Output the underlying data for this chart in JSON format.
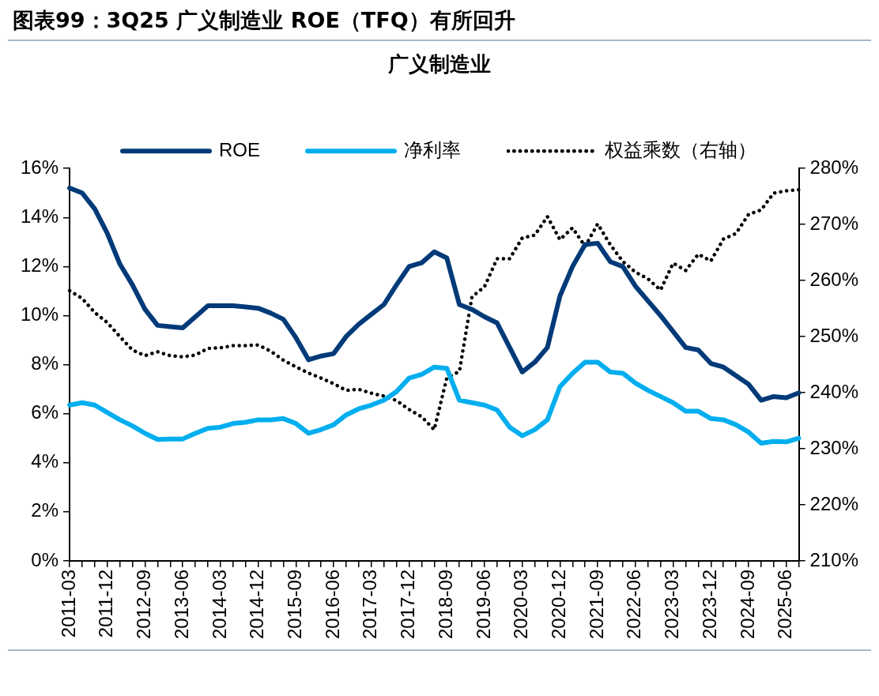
{
  "chart_data": {
    "type": "line",
    "title": "图表99：3Q25 广义制造业 ROE（TFQ）有所回升",
    "subtitle": "广义制造业",
    "categories": [
      "2011-03",
      null,
      null,
      "2011-12",
      null,
      null,
      "2012-09",
      null,
      null,
      "2013-06",
      null,
      null,
      "2014-03",
      null,
      null,
      "2014-12",
      null,
      null,
      "2015-09",
      null,
      null,
      "2016-06",
      null,
      null,
      "2017-03",
      null,
      null,
      "2017-12",
      null,
      null,
      "2018-09",
      null,
      null,
      "2019-06",
      null,
      null,
      "2020-03",
      null,
      null,
      "2020-12",
      null,
      null,
      "2021-09",
      null,
      null,
      "2022-06",
      null,
      null,
      "2023-03",
      null,
      null,
      "2023-12",
      null,
      null,
      "2024-09",
      null,
      null,
      "2025-06",
      null
    ],
    "series": [
      {
        "name": "ROE",
        "color": "#003a78",
        "line_style": "solid",
        "values": [
          15.2,
          15.0,
          14.35,
          13.35,
          12.1,
          11.25,
          10.25,
          9.6,
          9.55,
          9.5,
          9.95,
          10.4,
          10.4,
          10.4,
          10.35,
          10.3,
          10.1,
          9.85,
          9.1,
          8.2,
          8.35,
          8.45,
          9.15,
          9.65,
          10.05,
          10.45,
          11.25,
          12.0,
          12.15,
          12.6,
          12.35,
          10.45,
          10.25,
          9.95,
          9.7,
          8.7,
          7.7,
          8.1,
          8.7,
          10.8,
          12.0,
          12.9,
          12.95,
          12.2,
          12.0,
          11.2,
          10.6,
          10.0,
          9.35,
          8.7,
          8.6,
          8.05,
          7.9,
          7.55,
          7.2,
          6.55,
          6.7,
          6.65,
          6.85
        ]
      },
      {
        "name": "净利率",
        "color": "#00aeef",
        "line_style": "solid",
        "values": [
          6.35,
          6.45,
          6.35,
          6.05,
          5.75,
          5.5,
          5.2,
          4.95,
          4.97,
          4.97,
          5.2,
          5.4,
          5.45,
          5.6,
          5.65,
          5.75,
          5.75,
          5.8,
          5.6,
          5.2,
          5.35,
          5.55,
          5.95,
          6.2,
          6.35,
          6.55,
          6.9,
          7.45,
          7.6,
          7.9,
          7.85,
          6.55,
          6.45,
          6.35,
          6.15,
          5.45,
          5.1,
          5.35,
          5.75,
          7.1,
          7.65,
          8.1,
          8.1,
          7.7,
          7.65,
          7.25,
          6.95,
          6.7,
          6.45,
          6.1,
          6.1,
          5.8,
          5.75,
          5.55,
          5.25,
          4.8,
          4.87,
          4.85,
          5.0
        ]
      },
      {
        "name": "权益乘数（右轴）",
        "color": "#000000",
        "line_style": "dotted",
        "axis": "y2",
        "values": [
          258.2,
          256.8,
          254.3,
          252.5,
          250.0,
          247.6,
          246.6,
          247.3,
          246.6,
          246.4,
          246.7,
          247.9,
          248.0,
          248.4,
          248.4,
          248.5,
          247.4,
          245.8,
          244.6,
          243.5,
          242.6,
          241.6,
          240.4,
          240.6,
          239.9,
          239.4,
          238.6,
          237.0,
          235.7,
          233.4,
          242.6,
          243.8,
          257.1,
          258.9,
          263.9,
          263.9,
          267.6,
          268.1,
          271.4,
          267.3,
          269.4,
          266.1,
          270.1,
          266.4,
          263.4,
          261.5,
          260.3,
          258.3,
          263.1,
          261.8,
          264.7,
          263.5,
          267.4,
          268.4,
          271.8,
          272.6,
          275.6,
          276.0,
          276.2
        ]
      }
    ],
    "ylim": [
      0,
      16
    ],
    "yticks": [
      {
        "value": 0,
        "label": "0%"
      },
      {
        "value": 2,
        "label": "2%"
      },
      {
        "value": 4,
        "label": "4%"
      },
      {
        "value": 6,
        "label": "6%"
      },
      {
        "value": 8,
        "label": "8%"
      },
      {
        "value": 10,
        "label": "10%"
      },
      {
        "value": 12,
        "label": "12%"
      },
      {
        "value": 14,
        "label": "14%"
      },
      {
        "value": 16,
        "label": "16%"
      }
    ],
    "y2lim": [
      210,
      280
    ],
    "y2ticks": [
      {
        "value": 210,
        "label": "210%"
      },
      {
        "value": 220,
        "label": "220%"
      },
      {
        "value": 230,
        "label": "230%"
      },
      {
        "value": 240,
        "label": "240%"
      },
      {
        "value": 250,
        "label": "250%"
      },
      {
        "value": 260,
        "label": "260%"
      },
      {
        "value": 270,
        "label": "270%"
      },
      {
        "value": 280,
        "label": "280%"
      }
    ],
    "legend": "top",
    "grid": false,
    "marker": "none"
  }
}
